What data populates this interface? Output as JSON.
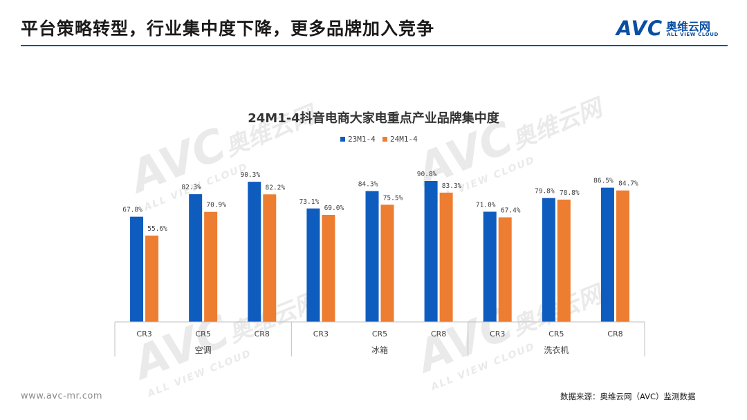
{
  "page": {
    "title": "平台策略转型，行业集中度下降，更多品牌加入竞争",
    "logo_mark": "AVC",
    "logo_cn": "奥维云网",
    "logo_en": "ALL VIEW CLOUD",
    "footer_url": "www.avc-mr.com",
    "footer_source": "数据来源：奥维云网（AVC）监测数据",
    "watermark_mark": "AVC",
    "watermark_cn": "奥维云网",
    "watermark_en": "ALL VIEW CLOUD"
  },
  "colors": {
    "accent": "#0a4ea3",
    "series_1": "#0f5cbf",
    "series_2": "#ed7d31"
  },
  "chart_data": {
    "type": "bar",
    "title": "24M1-4抖音电商大家电重点产业品牌集中度",
    "legend_position": "top",
    "grid": false,
    "ylim": [
      0,
      100
    ],
    "groups": [
      {
        "name": "空调",
        "categories": [
          "CR3",
          "CR5",
          "CR8"
        ]
      },
      {
        "name": "冰箱",
        "categories": [
          "CR3",
          "CR5",
          "CR8"
        ]
      },
      {
        "name": "洗衣机",
        "categories": [
          "CR3",
          "CR5",
          "CR8"
        ]
      }
    ],
    "series": [
      {
        "name": "23M1-4",
        "values": [
          67.8,
          82.3,
          90.3,
          73.1,
          84.3,
          90.8,
          71.0,
          79.8,
          86.5
        ],
        "labels": [
          "67.8%",
          "82.3%",
          "90.3%",
          "73.1%",
          "84.3%",
          "90.8%",
          "71.0%",
          "79.8%",
          "86.5%"
        ]
      },
      {
        "name": "24M1-4",
        "values": [
          55.6,
          70.9,
          82.2,
          69.0,
          75.5,
          83.3,
          67.4,
          78.8,
          84.7
        ],
        "labels": [
          "55.6%",
          "70.9%",
          "82.2%",
          "69.0%",
          "75.5%",
          "83.3%",
          "67.4%",
          "78.8%",
          "84.7%"
        ]
      }
    ]
  }
}
